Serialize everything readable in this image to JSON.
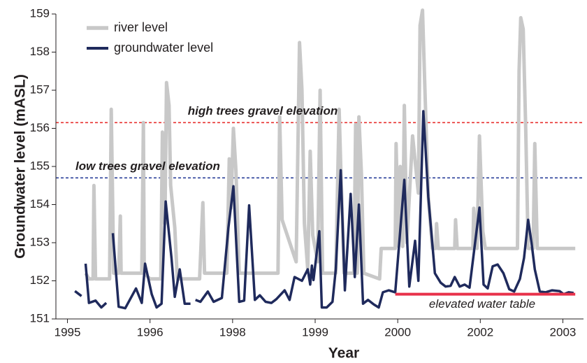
{
  "chart_data": {
    "type": "line",
    "xlabel": "Year",
    "ylabel": "Groundwater level (mASL)",
    "xlim": [
      1994.86,
      2001.25
    ],
    "ylim": [
      151,
      159
    ],
    "xticks": [
      1995,
      1996,
      {
        "value": 1997,
        "label": "1998"
      },
      {
        "value": 1998,
        "label": "1999"
      },
      {
        "value": 1999,
        "label": "2000"
      },
      {
        "value": 2000,
        "label": "2002"
      },
      {
        "value": 2001,
        "label": "2003"
      }
    ],
    "yticks": [
      151,
      152,
      153,
      154,
      155,
      156,
      157,
      158,
      159
    ],
    "legend": "top-left",
    "series": [
      {
        "name": "river level",
        "color": "#c8c8c8",
        "width": 5,
        "x": [
          1995.22,
          1995.26,
          1995.31,
          1995.32,
          1995.34,
          1995.51,
          1995.53,
          1995.56,
          1995.62,
          1995.64,
          1995.65,
          1995.9,
          1995.92,
          1995.93,
          1996.0,
          1996.13,
          1996.15,
          1996.18,
          1996.2,
          1996.23,
          1996.25,
          1996.3,
          1996.33,
          1996.6,
          1996.64,
          1996.66,
          1996.93,
          1996.96,
          1996.98,
          1997.01,
          1997.04,
          1997.08,
          1997.55,
          1997.57,
          1997.6,
          1997.77,
          1997.81,
          1997.84,
          1997.87,
          1997.91,
          1997.94,
          1997.97,
          1998.03,
          1998.06,
          1998.09,
          1998.25,
          1998.29,
          1998.31,
          1998.35,
          1998.47,
          1998.49,
          1998.51,
          1998.53,
          1998.56,
          1998.59,
          1998.78,
          1998.8,
          1998.97,
          1998.98,
          1999.01,
          1999.03,
          1999.06,
          1999.08,
          1999.11,
          1999.18,
          1999.25,
          1999.27,
          1999.3,
          1999.33,
          1999.37,
          1999.42,
          1999.46,
          1999.47,
          1999.49,
          1999.69,
          1999.7,
          1999.72,
          1999.91,
          1999.92,
          1999.96,
          1999.99,
          2000.03,
          2000.06,
          2000.45,
          2000.47,
          2000.49,
          2000.52,
          2000.55,
          2000.58,
          2000.64,
          2000.66,
          2000.69,
          2001.15
        ],
        "values": [
          152.2,
          152.05,
          152.05,
          154.5,
          152.05,
          152.05,
          156.5,
          152.2,
          152.2,
          153.7,
          152.2,
          152.2,
          156.15,
          152.2,
          152.05,
          152.05,
          155.9,
          153.5,
          157.2,
          156.6,
          154.5,
          153.4,
          152.05,
          152.05,
          154.05,
          152.2,
          152.2,
          155.2,
          153.9,
          156.0,
          154.9,
          152.2,
          152.2,
          156.3,
          153.6,
          152.5,
          158.25,
          157.0,
          153.5,
          152.3,
          155.4,
          153.2,
          152.5,
          157.0,
          152.2,
          152.2,
          156.5,
          155.0,
          152.2,
          152.2,
          156.1,
          152.2,
          156.3,
          154.8,
          152.2,
          152.05,
          152.85,
          152.85,
          155.6,
          152.9,
          155.0,
          152.9,
          156.6,
          153.0,
          155.8,
          154.3,
          158.7,
          159.1,
          157.0,
          154.2,
          152.85,
          152.85,
          153.5,
          152.85,
          152.85,
          153.6,
          152.85,
          152.85,
          153.9,
          152.85,
          155.8,
          153.3,
          152.85,
          152.85,
          157.5,
          158.9,
          158.6,
          156.0,
          152.85,
          152.85,
          155.6,
          152.85,
          152.85
        ]
      },
      {
        "name": "groundwater level",
        "color": "#1f2a5c",
        "width": 3.5,
        "x": [
          1995.09,
          1995.17,
          1995.19,
          1995.22,
          1995.26,
          1995.34,
          1995.41,
          1995.47,
          1995.51,
          1995.55,
          1995.62,
          1995.7,
          1995.83,
          1995.9,
          1995.94,
          1996.02,
          1996.08,
          1996.14,
          1996.19,
          1996.26,
          1996.3,
          1996.36,
          1996.42,
          1996.49,
          1996.52,
          1996.55,
          1996.61,
          1996.7,
          1996.77,
          1996.87,
          1996.95,
          1997.01,
          1997.08,
          1997.14,
          1997.2,
          1997.27,
          1997.33,
          1997.4,
          1997.47,
          1997.53,
          1997.63,
          1997.69,
          1997.75,
          1997.84,
          1997.91,
          1997.94,
          1997.96,
          1997.98,
          1998.05,
          1998.08,
          1998.14,
          1998.21,
          1998.25,
          1998.31,
          1998.36,
          1998.43,
          1998.48,
          1998.53,
          1998.58,
          1998.64,
          1998.71,
          1998.77,
          1998.82,
          1998.89,
          1998.97,
          1999.08,
          1999.14,
          1999.21,
          1999.25,
          1999.31,
          1999.37,
          1999.45,
          1999.52,
          1999.58,
          1999.64,
          1999.69,
          1999.75,
          1999.81,
          1999.87,
          1999.99,
          2000.04,
          2000.09,
          2000.15,
          2000.21,
          2000.28,
          2000.35,
          2000.41,
          2000.48,
          2000.53,
          2000.58,
          2000.62,
          2000.66,
          2000.72,
          2000.79,
          2000.87,
          2000.96,
          2001.01,
          2001.07,
          2001.13
        ],
        "values": [
          151.73,
          151.6,
          null,
          152.45,
          151.42,
          151.48,
          151.3,
          151.42,
          null,
          153.25,
          151.32,
          151.28,
          151.8,
          151.42,
          152.45,
          151.65,
          151.3,
          151.4,
          154.08,
          152.6,
          151.58,
          152.3,
          151.4,
          151.4,
          null,
          151.5,
          151.45,
          151.72,
          151.45,
          151.55,
          153.4,
          154.48,
          151.45,
          151.48,
          153.98,
          151.5,
          151.62,
          151.45,
          151.42,
          151.52,
          151.75,
          151.5,
          152.1,
          152.0,
          152.3,
          151.9,
          152.4,
          152.02,
          153.3,
          151.3,
          151.3,
          151.45,
          152.3,
          154.9,
          151.75,
          154.28,
          152.1,
          154.0,
          151.4,
          151.5,
          151.38,
          151.3,
          151.7,
          151.75,
          151.7,
          154.65,
          151.85,
          153.05,
          152.0,
          156.45,
          154.2,
          152.2,
          151.95,
          151.85,
          151.87,
          152.1,
          151.85,
          151.9,
          151.82,
          153.92,
          151.9,
          151.8,
          152.38,
          152.43,
          152.2,
          151.78,
          151.72,
          152.05,
          152.6,
          153.6,
          153.0,
          152.3,
          151.72,
          151.7,
          151.75,
          151.73,
          151.65,
          151.7,
          151.68
        ]
      }
    ],
    "reference_lines": [
      {
        "label": "high trees gravel elevation",
        "value": 156.15,
        "color": "#e8312f"
      },
      {
        "label": "low trees gravel elevation",
        "value": 154.7,
        "color": "#2a3f9a"
      }
    ],
    "segment": {
      "label": "elevated water table",
      "value": 151.65,
      "xrange": [
        1998.97,
        2001.15
      ],
      "color": "#e8314a"
    }
  }
}
